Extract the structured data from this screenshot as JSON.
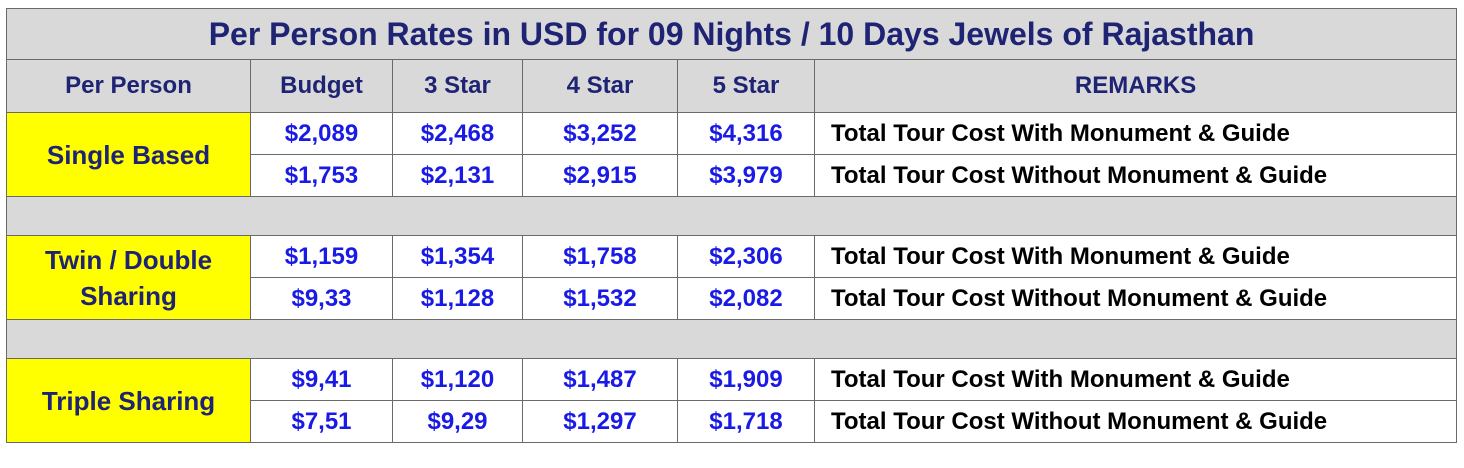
{
  "title": "Per Person Rates in USD for 09 Nights / 10 Days Jewels of Rajasthan",
  "headers": [
    "Per Person",
    "Budget",
    "3 Star",
    "4 Star",
    "5 Star",
    "REMARKS"
  ],
  "groups": [
    {
      "label": "Single Based",
      "rows": [
        {
          "prices": [
            "$2,089",
            "$2,468",
            "$3,252",
            "$4,316"
          ],
          "remark": "Total Tour Cost With Monument & Guide"
        },
        {
          "prices": [
            "$1,753",
            "$2,131",
            "$2,915",
            "$3,979"
          ],
          "remark": "Total Tour Cost Without Monument & Guide"
        }
      ]
    },
    {
      "label_line1": "Twin / Double",
      "label_line2": "Sharing",
      "rows": [
        {
          "prices": [
            "$1,159",
            "$1,354",
            "$1,758",
            "$2,306"
          ],
          "remark": "Total Tour Cost With Monument & Guide"
        },
        {
          "prices": [
            "$9,33",
            "$1,128",
            "$1,532",
            "$2,082"
          ],
          "remark": "Total Tour Cost Without Monument & Guide"
        }
      ]
    },
    {
      "label": "Triple Sharing",
      "rows": [
        {
          "prices": [
            "$9,41",
            "$1,120",
            "$1,487",
            "$1,909"
          ],
          "remark": "Total Tour Cost With Monument & Guide"
        },
        {
          "prices": [
            "$7,51",
            "$9,29",
            "$1,297",
            "$1,718"
          ],
          "remark": "Total Tour Cost Without Monument & Guide"
        }
      ]
    }
  ],
  "colors": {
    "header_bg": "#d9d9d9",
    "header_text": "#1f2373",
    "label_bg": "#ffff00",
    "price_text": "#1a1ae6",
    "remark_text": "#000000"
  }
}
